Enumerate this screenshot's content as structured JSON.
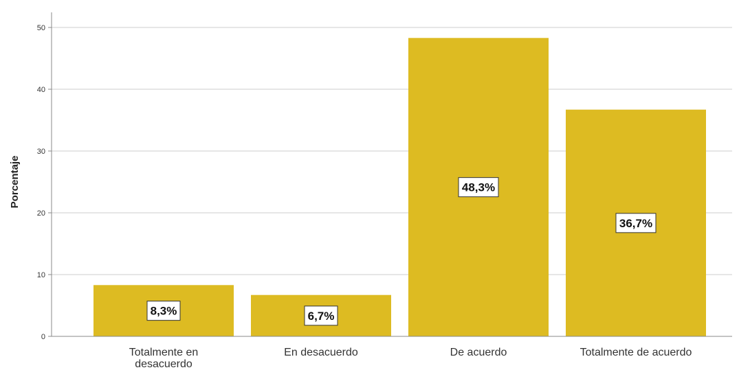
{
  "chart_data": {
    "type": "bar",
    "categories": [
      "Totalmente en desacuerdo",
      "En desacuerdo",
      "De acuerdo",
      "Totalmente de acuerdo"
    ],
    "category_label_lines": [
      [
        "Totalmente en",
        "desacuerdo"
      ],
      [
        "En desacuerdo"
      ],
      [
        "De acuerdo"
      ],
      [
        "Totalmente de acuerdo"
      ]
    ],
    "values": [
      8.3,
      6.7,
      48.3,
      36.7
    ],
    "data_labels": [
      "8,3%",
      "6,7%",
      "48,3%",
      "36,7%"
    ],
    "title": "",
    "xlabel": "",
    "ylabel": "Porcentaje",
    "ylim": [
      0,
      50
    ],
    "yticks": [
      0,
      10,
      20,
      30,
      40,
      50
    ],
    "grid": true,
    "bar_color": "#DDBB22",
    "grid_color": "#CCCCCC"
  }
}
